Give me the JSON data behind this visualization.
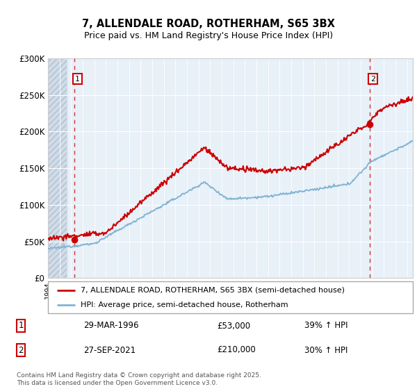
{
  "title1": "7, ALLENDALE ROAD, ROTHERHAM, S65 3BX",
  "title2": "Price paid vs. HM Land Registry's House Price Index (HPI)",
  "legend_line1": "7, ALLENDALE ROAD, ROTHERHAM, S65 3BX (semi-detached house)",
  "legend_line2": "HPI: Average price, semi-detached house, Rotherham",
  "annotation1": {
    "label": "1",
    "date": "29-MAR-1996",
    "price": "£53,000",
    "hpi": "39% ↑ HPI"
  },
  "annotation2": {
    "label": "2",
    "date": "27-SEP-2021",
    "price": "£210,000",
    "hpi": "30% ↑ HPI"
  },
  "footer": "Contains HM Land Registry data © Crown copyright and database right 2025.\nThis data is licensed under the Open Government Licence v3.0.",
  "price_color": "#cc0000",
  "hpi_color": "#7fb3d3",
  "background_color": "#e8f0f8",
  "ylim": [
    0,
    300000
  ],
  "yticks": [
    0,
    50000,
    100000,
    150000,
    200000,
    250000,
    300000
  ],
  "ytick_labels": [
    "£0",
    "£50K",
    "£100K",
    "£150K",
    "£200K",
    "£250K",
    "£300K"
  ],
  "marker1_x": 1996.25,
  "marker1_y": 53000,
  "marker2_x": 2021.75,
  "marker2_y": 210000,
  "xmin": 1994.0,
  "xmax": 2025.5
}
